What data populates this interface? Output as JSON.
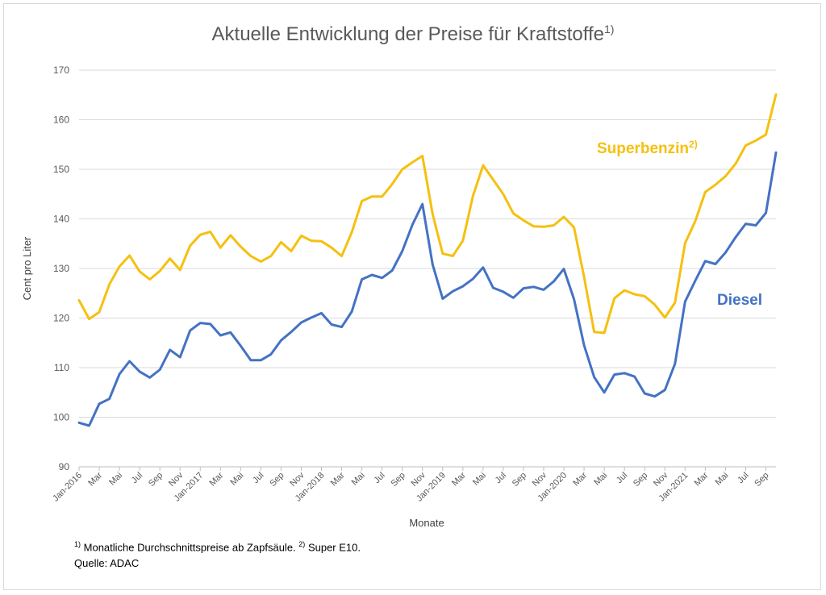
{
  "chart_data": {
    "type": "line",
    "title": "Aktuelle Entwicklung der Preise für Kraftstoffe",
    "title_superscript": "1)",
    "xlabel": "Monate",
    "ylabel": "Cent pro Liter",
    "ylim": [
      90,
      170
    ],
    "yticks": [
      90,
      100,
      110,
      120,
      130,
      140,
      150,
      160,
      170
    ],
    "grid": true,
    "x_tick_labels": [
      "Jan-2016",
      "Mar",
      "Mai",
      "Jul",
      "Sep",
      "Nov",
      "Jan-2017",
      "Mar",
      "Mai",
      "Jul",
      "Sep",
      "Nov",
      "Jan-2018",
      "Mar",
      "Mai",
      "Jul",
      "Sep",
      "Nov",
      "Jan-2019",
      "Mar",
      "Mai",
      "Jul",
      "Sep",
      "Nov",
      "Jan-2020",
      "Mar",
      "Mai",
      "Jul",
      "Sep",
      "Nov",
      "Jan-2021",
      "Mar",
      "Mai",
      "Jul",
      "Sep"
    ],
    "x": [
      "2016-01",
      "2016-02",
      "2016-03",
      "2016-04",
      "2016-05",
      "2016-06",
      "2016-07",
      "2016-08",
      "2016-09",
      "2016-10",
      "2016-11",
      "2016-12",
      "2017-01",
      "2017-02",
      "2017-03",
      "2017-04",
      "2017-05",
      "2017-06",
      "2017-07",
      "2017-08",
      "2017-09",
      "2017-10",
      "2017-11",
      "2017-12",
      "2018-01",
      "2018-02",
      "2018-03",
      "2018-04",
      "2018-05",
      "2018-06",
      "2018-07",
      "2018-08",
      "2018-09",
      "2018-10",
      "2018-11",
      "2018-12",
      "2019-01",
      "2019-02",
      "2019-03",
      "2019-04",
      "2019-05",
      "2019-06",
      "2019-07",
      "2019-08",
      "2019-09",
      "2019-10",
      "2019-11",
      "2019-12",
      "2020-01",
      "2020-02",
      "2020-03",
      "2020-04",
      "2020-05",
      "2020-06",
      "2020-07",
      "2020-08",
      "2020-09",
      "2020-10",
      "2020-11",
      "2020-12",
      "2021-01",
      "2021-02",
      "2021-03",
      "2021-04",
      "2021-05",
      "2021-06",
      "2021-07",
      "2021-08",
      "2021-09",
      "2021-10"
    ],
    "series": [
      {
        "name": "Superbenzin",
        "name_superscript": "2)",
        "color": "#f5c00f",
        "values": [
          123.6,
          119.8,
          121.2,
          126.8,
          130.4,
          132.6,
          129.4,
          127.8,
          129.5,
          132.0,
          129.7,
          134.6,
          136.8,
          137.4,
          134.2,
          136.7,
          134.4,
          132.5,
          131.4,
          132.5,
          135.3,
          133.5,
          136.6,
          135.6,
          135.5,
          134.2,
          132.5,
          137.3,
          143.6,
          144.5,
          144.5,
          147.0,
          150.0,
          151.4,
          152.7,
          141.0,
          133.0,
          132.5,
          135.6,
          144.6,
          150.8,
          147.9,
          145.0,
          141.1,
          139.7,
          138.5,
          138.4,
          138.7,
          140.4,
          138.3,
          128.3,
          117.2,
          117.0,
          124.0,
          125.6,
          124.8,
          124.4,
          122.7,
          120.1,
          123.1,
          135.1,
          139.5,
          145.4,
          146.9,
          148.6,
          151.1,
          154.8,
          155.8,
          157.0,
          165.1
        ]
      },
      {
        "name": "Diesel",
        "color": "#4472c4",
        "values": [
          98.9,
          98.3,
          102.7,
          103.7,
          108.7,
          111.3,
          109.2,
          108.0,
          109.6,
          113.6,
          112.1,
          117.5,
          119.0,
          118.8,
          116.5,
          117.1,
          114.4,
          111.5,
          111.5,
          112.7,
          115.5,
          117.2,
          119.1,
          120.1,
          121.0,
          118.7,
          118.2,
          121.3,
          127.8,
          128.7,
          128.1,
          129.6,
          133.5,
          138.8,
          143.0,
          130.8,
          123.9,
          125.4,
          126.4,
          127.9,
          130.2,
          126.1,
          125.3,
          124.1,
          126.0,
          126.3,
          125.7,
          127.4,
          129.9,
          123.8,
          114.5,
          108.1,
          105.0,
          108.6,
          108.9,
          108.2,
          104.8,
          104.2,
          105.5,
          110.8,
          123.3,
          127.5,
          131.5,
          130.9,
          133.2,
          136.3,
          139.0,
          138.7,
          141.2,
          153.4
        ]
      }
    ]
  },
  "footnotes": {
    "mark1": "1)",
    "text1": "Monatliche Durchschnittspreise ab Zapfsäule.",
    "mark2": "2)",
    "text2": "Super E10.",
    "source": "Quelle: ADAC"
  }
}
